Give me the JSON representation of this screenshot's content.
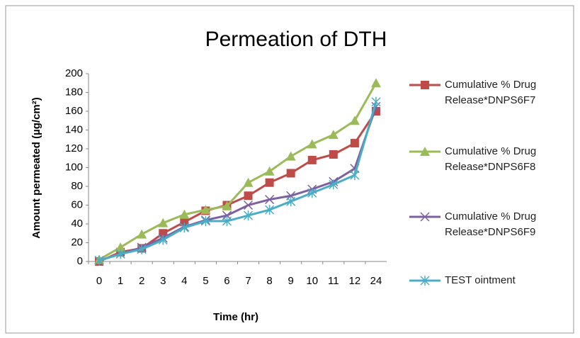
{
  "chart_data": {
    "type": "line",
    "title": "Permeation of DTH",
    "x_label": "Time (hr)",
    "y_label": "Amount permeated (µg/cm²)",
    "categories": [
      "0",
      "1",
      "2",
      "3",
      "4",
      "5",
      "6",
      "7",
      "8",
      "9",
      "10",
      "11",
      "12",
      "24"
    ],
    "ylim": [
      0,
      200
    ],
    "yticks": [
      0,
      20,
      40,
      60,
      80,
      100,
      120,
      140,
      160,
      180,
      200
    ],
    "grid": false,
    "legend": "right",
    "series": [
      {
        "name": "Cumulative % Drug Release*DNPS6F7",
        "color": "#be4b48",
        "marker": "square",
        "values": [
          0,
          10,
          14,
          30,
          42,
          54,
          60,
          70,
          84,
          94,
          108,
          114,
          126,
          160
        ]
      },
      {
        "name": "Cumulative % Drug Release*DNPS6F8",
        "color": "#9bbb59",
        "marker": "triangle",
        "values": [
          2,
          15,
          29,
          41,
          50,
          55,
          59,
          84,
          96,
          112,
          125,
          135,
          150,
          190
        ]
      },
      {
        "name": "Cumulative % Drug Release*DNPS6F9",
        "color": "#7d60a0",
        "marker": "x",
        "values": [
          1,
          8,
          15,
          25,
          37,
          44,
          49,
          60,
          66,
          70,
          77,
          85,
          99,
          165
        ]
      },
      {
        "name": "TEST ointment",
        "color": "#4bacc6",
        "marker": "star",
        "values": [
          1,
          8,
          13,
          23,
          36,
          43,
          43,
          49,
          55,
          64,
          73,
          82,
          92,
          170
        ]
      }
    ]
  }
}
